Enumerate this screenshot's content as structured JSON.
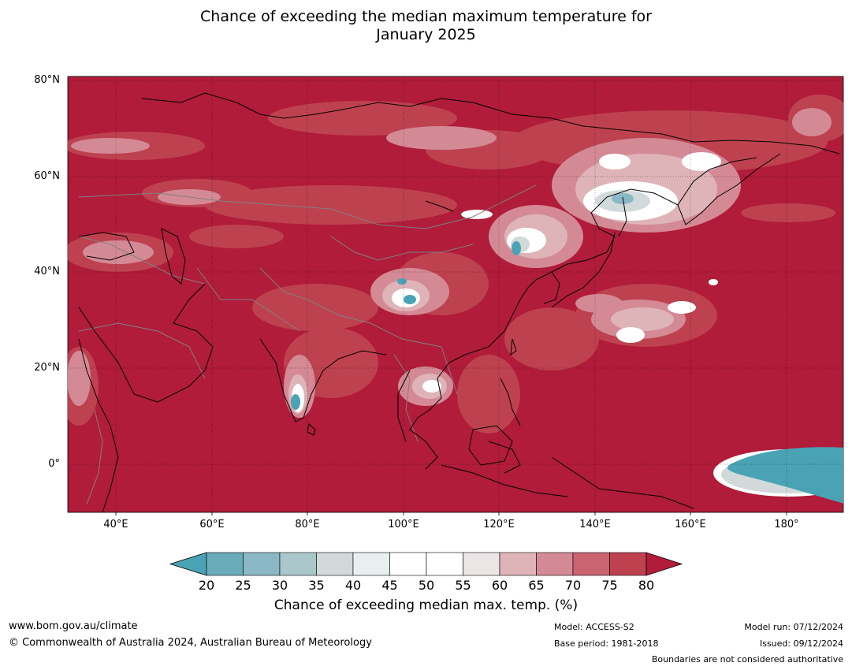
{
  "title_line1": "Chance of exceeding the median maximum temperature for",
  "title_line2": "January 2025",
  "lat_labels": [
    "80°N",
    "60°N",
    "40°N",
    "20°N",
    "0°"
  ],
  "lon_labels": [
    "40°E",
    "60°E",
    "80°E",
    "100°E",
    "120°E",
    "140°E",
    "160°E",
    "180°"
  ],
  "colorbar": {
    "ticks": [
      "20",
      "25",
      "30",
      "35",
      "40",
      "45",
      "50",
      "55",
      "60",
      "65",
      "70",
      "75",
      "80"
    ],
    "colors": [
      "#4aa3b5",
      "#6aabb9",
      "#8ab8c4",
      "#aac7cb",
      "#d1d9da",
      "#e9eef0",
      "#ffffff",
      "#ffffff",
      "#ebe5e6",
      "#deb4b9",
      "#d48a95",
      "#c96470",
      "#be4150",
      "#b01c3a"
    ],
    "label": "Chance of exceeding median max. temp. (%)"
  },
  "footer": {
    "url": "www.bom.gov.au/climate",
    "copyright": "© Commonwealth of Australia 2024, Australian Bureau of Meteorology",
    "model": "Model: ACCESS-S2",
    "base_period": "Base period: 1981-2018",
    "model_run": "Model run: 07/12/2024",
    "issued": "Issued: 09/12/2024",
    "disclaimer": "Boundaries are not considered authoritative"
  }
}
